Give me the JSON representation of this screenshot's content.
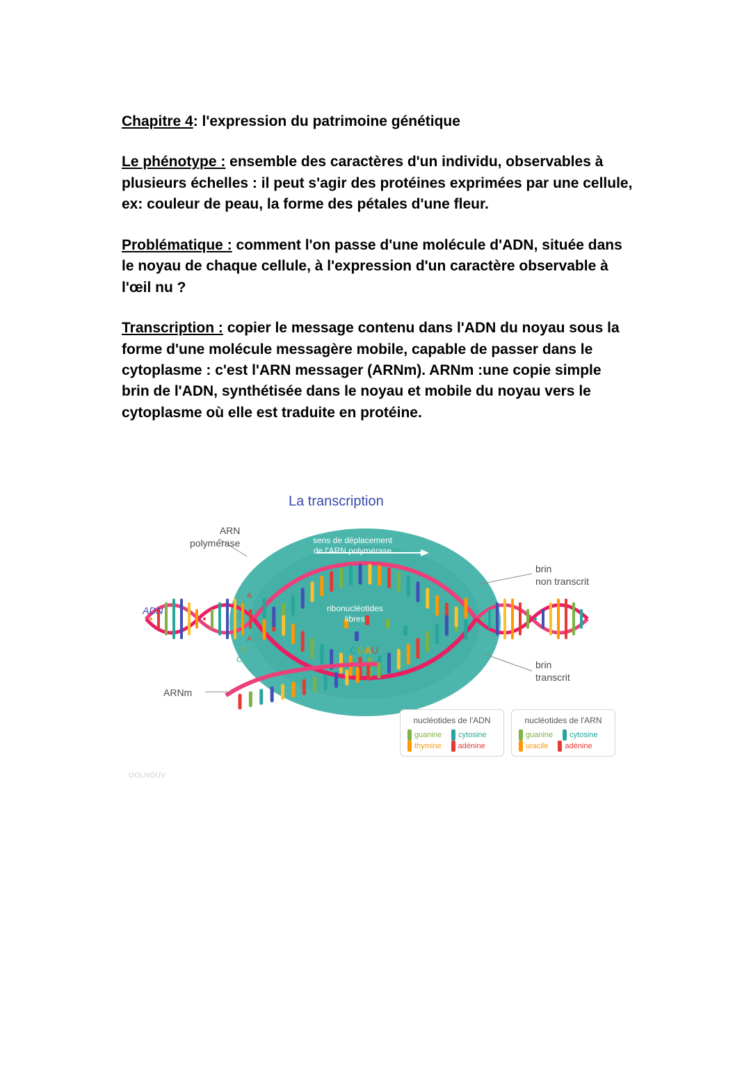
{
  "title": {
    "label": "Chapitre 4",
    "rest": ": l'expression du patrimoine génétique"
  },
  "p1": {
    "label": "Le phénotype :",
    "rest": " ensemble des caractères d'un individu, observables à plusieurs échelles : il peut s'agir des protéines exprimées par une cellule, ex: couleur de peau, la forme des pétales d'une fleur."
  },
  "p2": {
    "label": "Problématique :",
    "rest": " comment l'on passe d'une molécule d'ADN, située dans le noyau de chaque cellule, à l'expression d'un caractère observable à l'œil nu ?"
  },
  "p3": {
    "label": "Transcription :",
    "rest": " copier le message contenu dans l'ADN du noyau sous la forme d'une molécule messagère mobile, capable de passer dans le cytoplasme : c'est l'ARN messager (ARNm). ARNm :une copie simple brin de l'ADN, synthétisée dans le noyau et mobile du noyau vers le cytoplasme où elle est traduite en protéine."
  },
  "diagram": {
    "title": "La transcription",
    "labels": {
      "arn_polymerase": "ARN\npolymérase",
      "adn": "ADN",
      "arnm": "ARNm",
      "brin_nt": "brin\nnon transcrit",
      "brin_t": "brin\ntranscrit",
      "sens": "sens de déplacement\nde l'ARN polymérase",
      "ribo": "ribonucléotides\nlibres",
      "cgau": "CGAU"
    },
    "legend_adn": {
      "title": "nucléotides de l'ADN",
      "items": [
        {
          "name": "guanine",
          "color": "#7cb342"
        },
        {
          "name": "cytosine",
          "color": "#26a69a"
        },
        {
          "name": "thymine",
          "color": "#ff9800"
        },
        {
          "name": "adénine",
          "color": "#e53935"
        }
      ]
    },
    "legend_arn": {
      "title": "nucléotides de l'ARN",
      "items": [
        {
          "name": "guanine",
          "color": "#7cb342"
        },
        {
          "name": "cytosine",
          "color": "#26a69a"
        },
        {
          "name": "uracile",
          "color": "#ff9800"
        },
        {
          "name": "adénine",
          "color": "#e53935"
        }
      ]
    },
    "colors": {
      "blob": "#4db6ac",
      "blob_dark": "#26a69a",
      "helix_backbone": "#ec407a",
      "mrna": "#ec407a",
      "title": "#3949ab",
      "base_colors": [
        "#ff9800",
        "#e53935",
        "#7cb342",
        "#26a69a",
        "#3f51b5",
        "#fbc02d"
      ]
    },
    "watermark": "OOLNOUV"
  }
}
